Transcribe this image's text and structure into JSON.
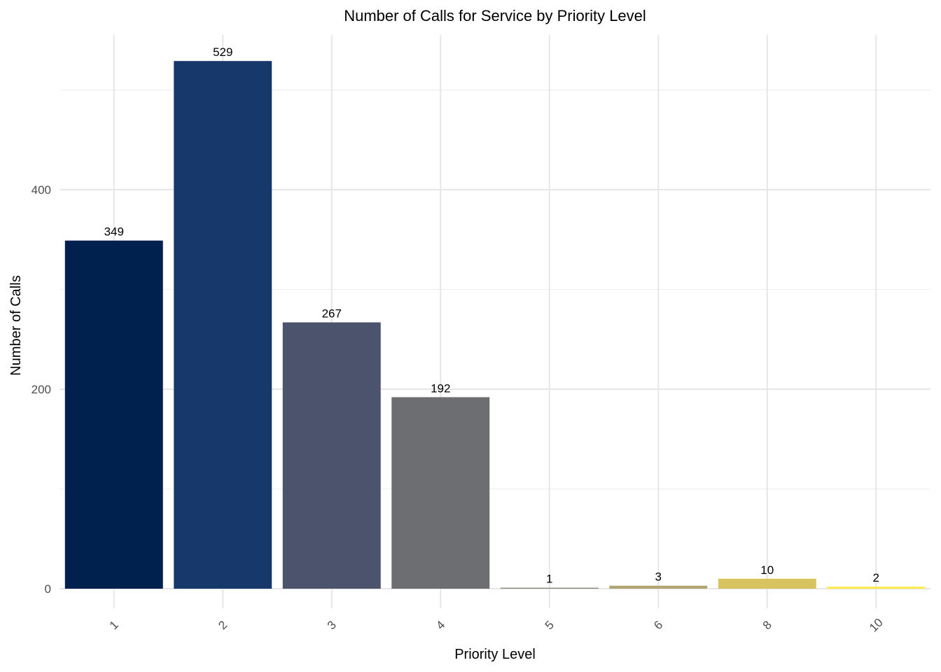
{
  "chart_data": {
    "type": "bar",
    "title": "Number of Calls for Service by Priority Level",
    "xlabel": "Priority Level",
    "ylabel": "Number of Calls",
    "categories": [
      "1",
      "2",
      "3",
      "4",
      "5",
      "6",
      "8",
      "10"
    ],
    "values": [
      349,
      529,
      267,
      192,
      1,
      3,
      10,
      2
    ],
    "colors": [
      "#00204D",
      "#16386A",
      "#4B546C",
      "#6D6E71",
      "#8D8A80",
      "#B1A571",
      "#D7C35F",
      "#FFE945"
    ],
    "ylim": [
      0,
      540
    ],
    "yticks": [
      0,
      200,
      400
    ],
    "grid": true,
    "legend": "none"
  }
}
